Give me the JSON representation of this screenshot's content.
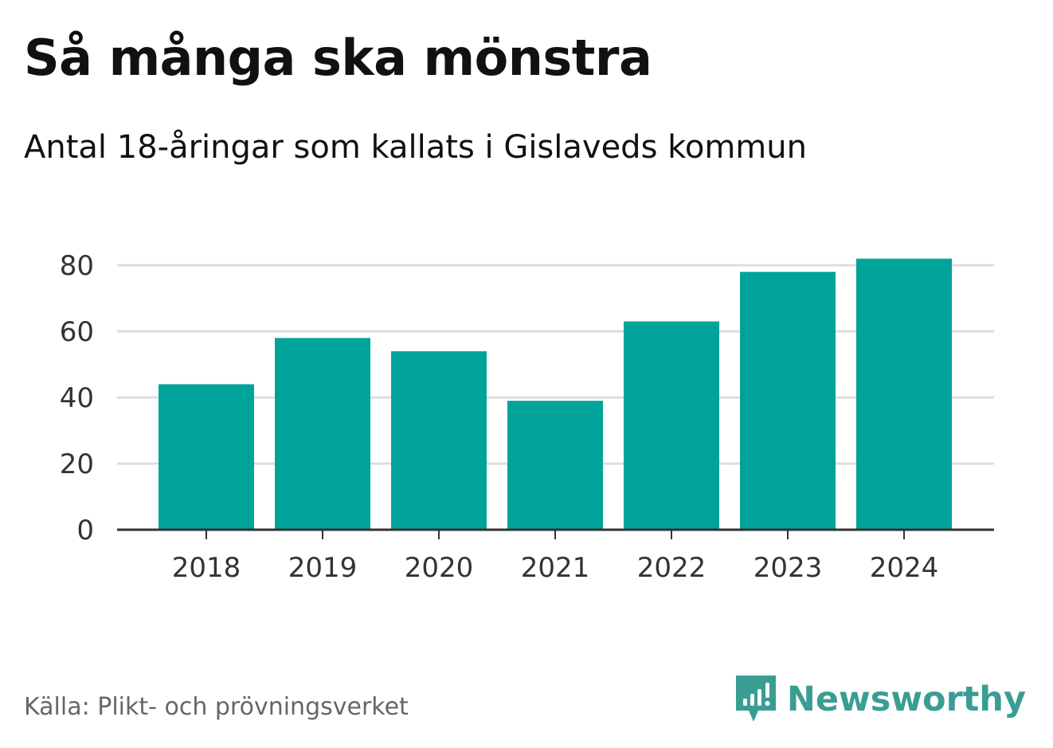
{
  "title": "Så många ska mönstra",
  "subtitle": "Antal 18-åringar som kallats i Gislaveds kommun",
  "source": "Källa: Plikt- och prövningsverket",
  "brand": {
    "name": "Newsworthy",
    "icon": "newsworthy-logo-icon",
    "color": "#3a9d93"
  },
  "chart_data": {
    "type": "bar",
    "categories": [
      "2018",
      "2019",
      "2020",
      "2021",
      "2022",
      "2023",
      "2024"
    ],
    "values": [
      44,
      58,
      54,
      39,
      63,
      78,
      82
    ],
    "ylim": [
      0,
      80
    ],
    "yticks": [
      "0",
      "20",
      "40",
      "60",
      "80"
    ],
    "grid": true,
    "legend": "none",
    "bar_color": "#00a39a",
    "grid_color": "#dddddd",
    "axis_color": "#333333"
  }
}
